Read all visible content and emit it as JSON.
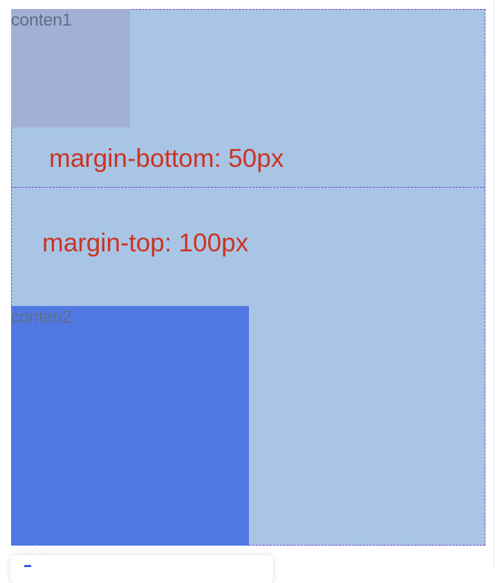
{
  "boxes": {
    "content1_label": "conten1",
    "content2_label": "conten2"
  },
  "annotations": {
    "margin_bottom": "margin-bottom: 50px",
    "margin_top": "margin-top: 100px"
  },
  "colors": {
    "container_bg": "#a8c5e5",
    "content1_bg": "#a2b0d4",
    "content2_bg": "#5178e2",
    "dashed_border": "#7a35d8",
    "annotation_text": "#cc3322"
  }
}
